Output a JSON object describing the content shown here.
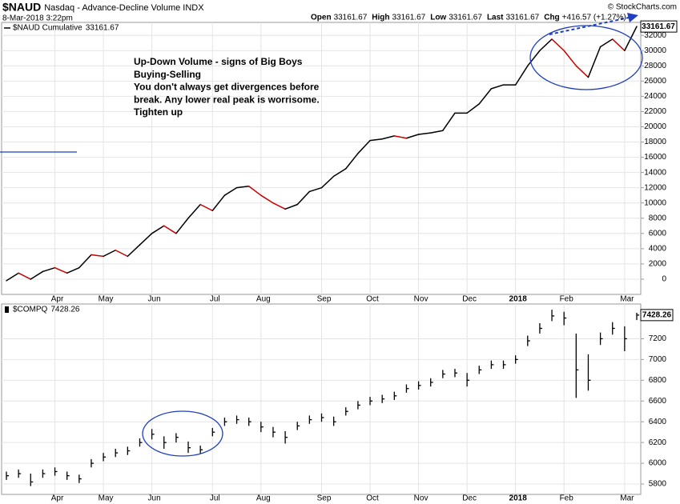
{
  "chart_data": [
    {
      "type": "line",
      "symbol": "$NAUD",
      "title": "Nasdaq - Advance-Decline Volume INDX",
      "date": "8-Mar-2018 3:22pm",
      "quote": [
        {
          "label": "Open",
          "value": 33161.67
        },
        {
          "label": "High",
          "value": 33161.67
        },
        {
          "label": "Low",
          "value": 33161.67
        },
        {
          "label": "Last",
          "value": 33161.67
        },
        {
          "label": "Chg",
          "value": "+416.57 (+1.27%)"
        }
      ],
      "credit": "© StockCharts.com",
      "annotations": [
        "Up-Down Volume - signs of Big Boys",
        "Buying-Selling",
        "You don't always get divergences before",
        "break. Any lower real peak is worrisome.",
        "Tighten up"
      ],
      "categories": [
        null,
        null,
        null,
        null,
        "Apr",
        null,
        null,
        null,
        "May",
        null,
        null,
        null,
        "Jun",
        null,
        null,
        null,
        null,
        "Jul",
        null,
        null,
        null,
        "Aug",
        null,
        null,
        null,
        null,
        "Sep",
        null,
        null,
        null,
        "Oct",
        null,
        null,
        null,
        "Nov",
        null,
        null,
        null,
        "Dec",
        null,
        null,
        null,
        "2018",
        null,
        null,
        null,
        "Feb",
        null,
        null,
        null,
        null,
        "Mar",
        null
      ],
      "series": [
        {
          "name": "$NAUD Cumulative",
          "up_color": "#000000",
          "down_color": "#cc0000",
          "values": [
            -200,
            800,
            0,
            1000,
            1500,
            800,
            1500,
            3200,
            3000,
            3800,
            3000,
            4500,
            6000,
            7000,
            6000,
            8000,
            9800,
            9000,
            11000,
            12000,
            12200,
            11000,
            10000,
            9200,
            9800,
            11500,
            12000,
            13500,
            14500,
            16500,
            18200,
            18400,
            18800,
            18500,
            19000,
            19200,
            19500,
            21800,
            21800,
            23000,
            25000,
            25500,
            25500,
            28000,
            30000,
            31500,
            30000,
            28000,
            26500,
            30500,
            31500,
            30000,
            33161.67
          ]
        }
      ],
      "ylim": [
        -2000,
        33700
      ],
      "yticks": [
        0,
        2000,
        4000,
        6000,
        8000,
        10000,
        12000,
        14000,
        16000,
        18000,
        20000,
        22000,
        24000,
        26000,
        28000,
        30000,
        32000
      ],
      "grid": true
    },
    {
      "type": "ohlc",
      "categories": [
        null,
        null,
        null,
        null,
        "Apr",
        null,
        null,
        null,
        "May",
        null,
        null,
        null,
        "Jun",
        null,
        null,
        null,
        null,
        "Jul",
        null,
        null,
        null,
        "Aug",
        null,
        null,
        null,
        null,
        "Sep",
        null,
        null,
        null,
        "Oct",
        null,
        null,
        null,
        "Nov",
        null,
        null,
        null,
        "Dec",
        null,
        null,
        null,
        "2018",
        null,
        null,
        null,
        "Feb",
        null,
        null,
        null,
        null,
        "Mar",
        null
      ],
      "series": [
        {
          "name": "$COMPQ",
          "color": "#000000",
          "close": [
            5880,
            5900,
            5820,
            5900,
            5920,
            5880,
            5850,
            6000,
            6060,
            6100,
            6120,
            6200,
            6280,
            6200,
            6250,
            6150,
            6130,
            6300,
            6400,
            6420,
            6400,
            6350,
            6300,
            6250,
            6360,
            6420,
            6440,
            6400,
            6500,
            6560,
            6600,
            6620,
            6650,
            6720,
            6750,
            6780,
            6860,
            6870,
            6800,
            6900,
            6950,
            6950,
            7000,
            7180,
            7300,
            7420,
            7400,
            6900,
            6800,
            7200,
            7300,
            7200,
            7428.26
          ],
          "high": [
            5920,
            5940,
            5900,
            5940,
            5960,
            5920,
            5890,
            6040,
            6100,
            6140,
            6160,
            6240,
            6330,
            6260,
            6290,
            6210,
            6170,
            6340,
            6440,
            6460,
            6440,
            6400,
            6350,
            6310,
            6400,
            6460,
            6480,
            6450,
            6540,
            6600,
            6640,
            6660,
            6690,
            6760,
            6790,
            6820,
            6900,
            6910,
            6870,
            6940,
            6990,
            6990,
            7040,
            7230,
            7350,
            7480,
            7460,
            7250,
            7050,
            7260,
            7360,
            7320,
            7450
          ],
          "low": [
            5840,
            5860,
            5780,
            5860,
            5880,
            5840,
            5810,
            5960,
            6020,
            6060,
            6080,
            6160,
            6230,
            6140,
            6200,
            6100,
            6090,
            6260,
            6360,
            6380,
            6360,
            6300,
            6250,
            6190,
            6320,
            6380,
            6400,
            6360,
            6460,
            6520,
            6560,
            6580,
            6610,
            6680,
            6710,
            6740,
            6820,
            6830,
            6740,
            6860,
            6910,
            6910,
            6960,
            7130,
            7250,
            7370,
            7330,
            6630,
            6700,
            7140,
            7240,
            7080,
            7380
          ]
        }
      ],
      "ylim": [
        5700,
        7535
      ],
      "yticks": [
        5800,
        6000,
        6200,
        6400,
        6600,
        6800,
        7000,
        7200
      ],
      "grid": true
    }
  ]
}
